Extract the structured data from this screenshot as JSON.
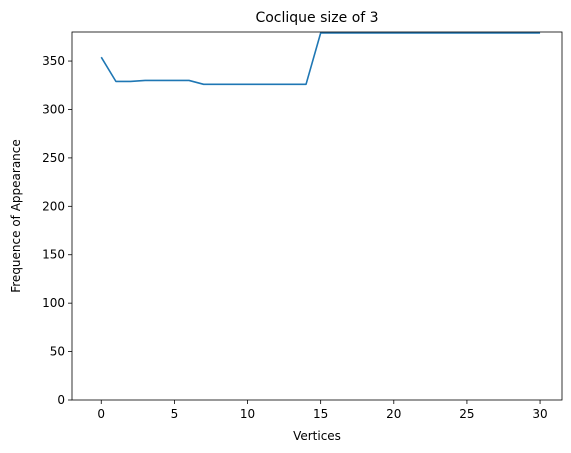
{
  "chart_data": {
    "type": "line",
    "title": "Coclique size of 3",
    "xlabel": "Vertices",
    "ylabel": "Frequence of Appearance",
    "xlim": [
      -2,
      31.5
    ],
    "ylim": [
      0,
      380
    ],
    "xticks": [
      0,
      5,
      10,
      15,
      20,
      25,
      30
    ],
    "yticks": [
      0,
      50,
      100,
      150,
      200,
      250,
      300,
      350
    ],
    "grid": false,
    "series": [
      {
        "color": "#1f77b4",
        "x": [
          0,
          1,
          2,
          3,
          4,
          5,
          6,
          7,
          8,
          9,
          10,
          11,
          12,
          13,
          14,
          15,
          16,
          17,
          18,
          19,
          20,
          21,
          22,
          23,
          24,
          25,
          26,
          27,
          28,
          29,
          30
        ],
        "y": [
          354,
          329,
          329,
          330,
          330,
          330,
          330,
          326,
          326,
          326,
          326,
          326,
          326,
          326,
          326,
          379,
          379,
          379,
          379,
          379,
          379,
          379,
          379,
          379,
          379,
          379,
          379,
          379,
          379,
          379,
          379
        ]
      }
    ]
  }
}
